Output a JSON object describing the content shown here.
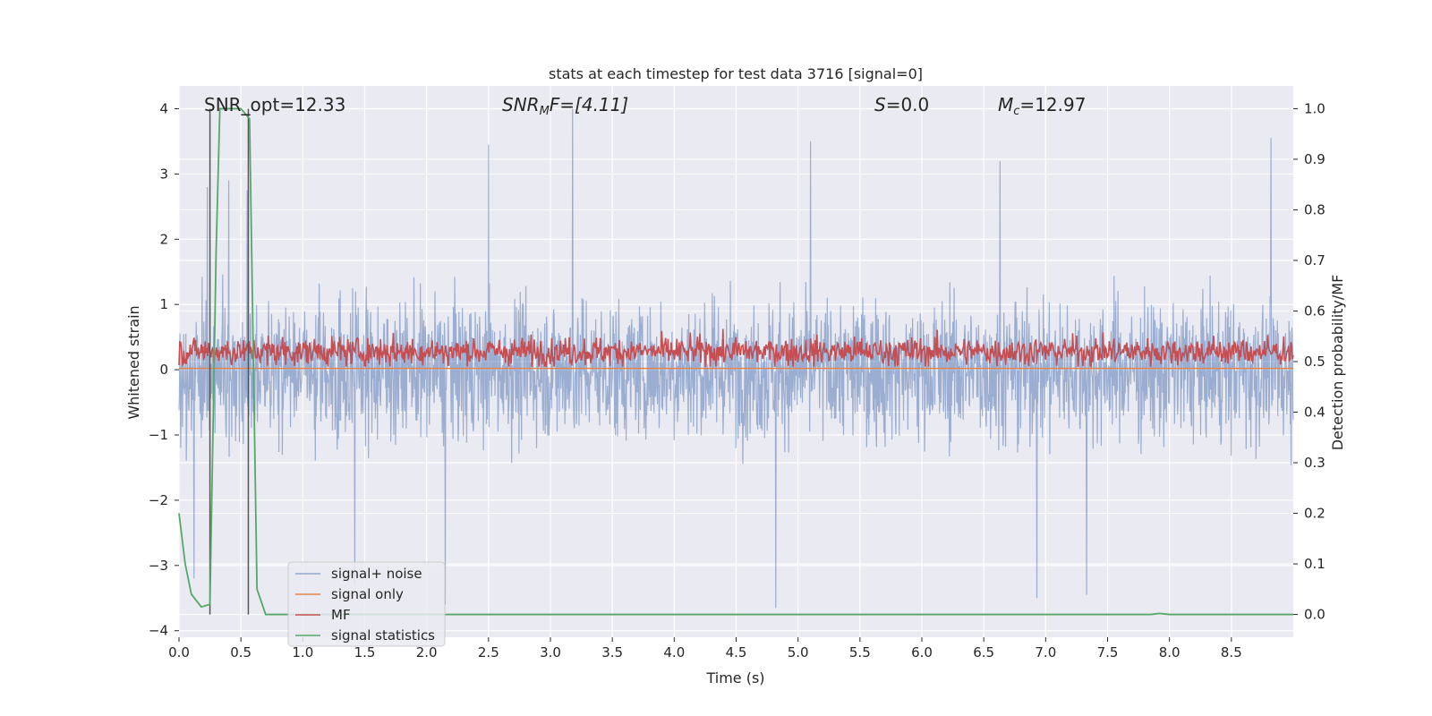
{
  "chart_data": {
    "type": "line",
    "title": "stats at each timestep for test data 3716 [signal=0]",
    "xlabel": "Time (s)",
    "ylabel_left": "Whitened strain",
    "ylabel_right": "Detection probability/MF",
    "xlim": [
      0,
      9.0
    ],
    "ylim_left": [
      -4.1,
      4.35
    ],
    "ylim_right": [
      -0.045,
      1.045
    ],
    "x_ticks": [
      "0.0",
      "0.5",
      "1.0",
      "1.5",
      "2.0",
      "2.5",
      "3.0",
      "3.5",
      "4.0",
      "4.5",
      "5.0",
      "5.5",
      "6.0",
      "6.5",
      "7.0",
      "7.5",
      "8.0",
      "8.5"
    ],
    "y_left_ticks": [
      "4",
      "3",
      "2",
      "1",
      "0",
      "−1",
      "−2",
      "−3",
      "−4"
    ],
    "y_right_ticks": [
      "1.0",
      "0.9",
      "0.8",
      "0.7",
      "0.6",
      "0.5",
      "0.4",
      "0.3",
      "0.2",
      "0.1",
      "0.0"
    ],
    "grid": true,
    "legend_position": "lower-left",
    "annotations": {
      "snr_opt": "SNR_opt=12.33",
      "snr_mf_sym": "SNR",
      "snr_mf_sub": "M",
      "snr_mf_rest": "F=[4.11]",
      "s_sym": "S",
      "s_rest": "=0.0",
      "mc_sym": "M",
      "mc_sub": "c",
      "mc_rest": "=12.97"
    },
    "vertical_markers_x": [
      0.25,
      0.56
    ],
    "series": [
      {
        "name": "signal+ noise",
        "color": "#4c72b0",
        "axis": "left",
        "description_values": {
          "mean": 0.0,
          "typical_envelope": [
            -2.3,
            2.3
          ],
          "max": 4.0,
          "min": -3.65
        },
        "peaks": [
          [
            0.23,
            2.8
          ],
          [
            0.55,
            2.75
          ],
          [
            2.5,
            3.45
          ],
          [
            3.18,
            4.0
          ],
          [
            5.1,
            3.5
          ],
          [
            6.63,
            3.2
          ],
          [
            8.82,
            3.55
          ],
          [
            0.4,
            2.9
          ],
          [
            4.82,
            -3.65
          ],
          [
            6.93,
            -3.5
          ],
          [
            7.33,
            -3.45
          ],
          [
            2.15,
            -3.6
          ],
          [
            0.12,
            -3.2
          ],
          [
            1.42,
            -3.3
          ]
        ]
      },
      {
        "name": "signal only",
        "color": "#dd8452",
        "axis": "left",
        "values_constant": 0.02
      },
      {
        "name": "MF",
        "color": "#c44e52",
        "axis": "right",
        "description_values": {
          "mean": 0.52,
          "typical_range": [
            0.48,
            0.58
          ],
          "max": 0.6
        }
      },
      {
        "name": "signal statistics",
        "color": "#55a868",
        "axis": "right",
        "x": [
          0.0,
          0.05,
          0.1,
          0.18,
          0.25,
          0.3,
          0.33,
          0.5,
          0.57,
          0.63,
          0.7,
          1.0,
          7.85,
          7.92,
          8.0,
          9.0
        ],
        "values": [
          0.2,
          0.1,
          0.04,
          0.015,
          0.02,
          0.72,
          1.0,
          1.0,
          0.98,
          0.05,
          0.0,
          0.0,
          0.0,
          0.002,
          0.0,
          0.0
        ]
      }
    ]
  }
}
